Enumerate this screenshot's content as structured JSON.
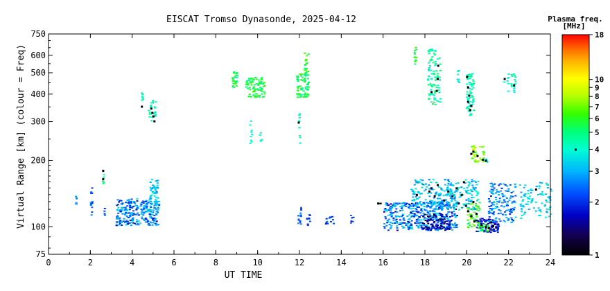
{
  "chart_data": {
    "type": "scatter",
    "title": "EISCAT Tromso Dynasonde, 2025-04-12",
    "xlabel": "UT TIME",
    "ylabel": "Virtual Range [km] (colour = Freq)",
    "xlim": [
      0,
      24
    ],
    "ylim": [
      75,
      750
    ],
    "yscale": "log",
    "x_ticks": [
      "0",
      "2",
      "4",
      "6",
      "8",
      "10",
      "12",
      "14",
      "16",
      "18",
      "20",
      "22",
      "24"
    ],
    "y_ticks": [
      "75",
      "100",
      "200",
      "300",
      "400",
      "500",
      "600",
      "750"
    ],
    "colorbar": {
      "title_line1": "Plasma freq.",
      "title_line2": "[MHz]",
      "range": [
        1,
        18
      ],
      "scale": "log",
      "ticks": [
        "1",
        "2",
        "3",
        "4",
        "5",
        "6",
        "7",
        "8",
        "9",
        "10",
        "18"
      ],
      "marker_value": 4
    },
    "clusters": [
      {
        "t0": 1.25,
        "t1": 1.3,
        "h0": 125,
        "h1": 140,
        "f0": 2.4,
        "f1": 3.0,
        "n": 6
      },
      {
        "t0": 1.95,
        "t1": 2.05,
        "h0": 110,
        "h1": 160,
        "f0": 1.9,
        "f1": 3.0,
        "n": 14
      },
      {
        "t0": 2.55,
        "t1": 2.65,
        "h0": 155,
        "h1": 182,
        "f0": 4.0,
        "f1": 5.5,
        "n": 5
      },
      {
        "t0": 2.6,
        "t1": 2.65,
        "h0": 110,
        "h1": 130,
        "f0": 2.0,
        "f1": 2.6,
        "n": 4
      },
      {
        "t0": 3.2,
        "t1": 5.25,
        "h0": 102,
        "h1": 135,
        "f0": 1.7,
        "f1": 3.6,
        "n": 260
      },
      {
        "t0": 4.8,
        "t1": 5.2,
        "h0": 130,
        "h1": 165,
        "f0": 2.6,
        "f1": 3.8,
        "n": 40
      },
      {
        "t0": 4.4,
        "t1": 4.5,
        "h0": 360,
        "h1": 410,
        "f0": 3.8,
        "f1": 4.8,
        "n": 8
      },
      {
        "t0": 4.75,
        "t1": 5.1,
        "h0": 300,
        "h1": 380,
        "f0": 3.6,
        "f1": 5.0,
        "n": 28
      },
      {
        "t0": 8.75,
        "t1": 9.0,
        "h0": 430,
        "h1": 510,
        "f0": 4.5,
        "f1": 6.5,
        "n": 30
      },
      {
        "t0": 9.4,
        "t1": 10.3,
        "h0": 390,
        "h1": 480,
        "f0": 4.5,
        "f1": 6.5,
        "n": 95
      },
      {
        "t0": 9.6,
        "t1": 9.7,
        "h0": 240,
        "h1": 310,
        "f0": 3.6,
        "f1": 4.4,
        "n": 9
      },
      {
        "t0": 10.05,
        "t1": 10.15,
        "h0": 240,
        "h1": 270,
        "f0": 3.6,
        "f1": 4.2,
        "n": 5
      },
      {
        "t0": 11.8,
        "t1": 12.4,
        "h0": 390,
        "h1": 500,
        "f0": 4.5,
        "f1": 6.5,
        "n": 75
      },
      {
        "t0": 12.2,
        "t1": 12.4,
        "h0": 480,
        "h1": 620,
        "f0": 5.0,
        "f1": 7.0,
        "n": 18
      },
      {
        "t0": 11.9,
        "t1": 12.0,
        "h0": 240,
        "h1": 330,
        "f0": 3.6,
        "f1": 4.6,
        "n": 12
      },
      {
        "t0": 11.9,
        "t1": 12.05,
        "h0": 102,
        "h1": 125,
        "f0": 1.8,
        "f1": 2.8,
        "n": 14
      },
      {
        "t0": 12.2,
        "t1": 12.5,
        "h0": 102,
        "h1": 118,
        "f0": 1.8,
        "f1": 2.6,
        "n": 10
      },
      {
        "t0": 13.2,
        "t1": 13.6,
        "h0": 102,
        "h1": 112,
        "f0": 1.8,
        "f1": 2.5,
        "n": 12
      },
      {
        "t0": 14.4,
        "t1": 14.6,
        "h0": 104,
        "h1": 115,
        "f0": 1.8,
        "f1": 2.4,
        "n": 6
      },
      {
        "t0": 15.75,
        "t1": 15.85,
        "h0": 125,
        "h1": 130,
        "f0": 1.0,
        "f1": 1.1,
        "n": 2
      },
      {
        "t0": 16.0,
        "t1": 19.5,
        "h0": 97,
        "h1": 130,
        "f0": 1.6,
        "f1": 3.6,
        "n": 420
      },
      {
        "t0": 17.3,
        "t1": 19.3,
        "h0": 120,
        "h1": 165,
        "f0": 2.4,
        "f1": 3.8,
        "n": 140
      },
      {
        "t0": 17.8,
        "t1": 19.2,
        "h0": 97,
        "h1": 115,
        "f0": 1.2,
        "f1": 1.9,
        "n": 80
      },
      {
        "t0": 19.0,
        "t1": 20.5,
        "h0": 120,
        "h1": 165,
        "f0": 2.5,
        "f1": 4.0,
        "n": 120
      },
      {
        "t0": 20.0,
        "t1": 20.6,
        "h0": 100,
        "h1": 130,
        "f0": 5.0,
        "f1": 8.0,
        "n": 45
      },
      {
        "t0": 20.4,
        "t1": 21.5,
        "h0": 95,
        "h1": 110,
        "f0": 1.3,
        "f1": 2.2,
        "n": 90
      },
      {
        "t0": 20.5,
        "t1": 21.0,
        "h0": 96,
        "h1": 104,
        "f0": 4.5,
        "f1": 6.5,
        "n": 25
      },
      {
        "t0": 21.0,
        "t1": 22.3,
        "h0": 105,
        "h1": 160,
        "f0": 1.8,
        "f1": 3.4,
        "n": 140
      },
      {
        "t0": 22.5,
        "t1": 24.0,
        "h0": 110,
        "h1": 160,
        "f0": 2.8,
        "f1": 3.9,
        "n": 90
      },
      {
        "t0": 17.45,
        "t1": 17.55,
        "h0": 530,
        "h1": 670,
        "f0": 5.0,
        "f1": 6.5,
        "n": 12
      },
      {
        "t0": 18.1,
        "t1": 18.7,
        "h0": 360,
        "h1": 650,
        "f0": 3.6,
        "f1": 5.5,
        "n": 90
      },
      {
        "t0": 19.5,
        "t1": 19.6,
        "h0": 440,
        "h1": 520,
        "f0": 3.5,
        "f1": 4.0,
        "n": 8
      },
      {
        "t0": 19.95,
        "t1": 20.3,
        "h0": 320,
        "h1": 500,
        "f0": 3.5,
        "f1": 5.0,
        "n": 70
      },
      {
        "t0": 20.2,
        "t1": 20.8,
        "h0": 198,
        "h1": 235,
        "f0": 6.0,
        "f1": 9.0,
        "n": 40
      },
      {
        "t0": 20.7,
        "t1": 20.95,
        "h0": 198,
        "h1": 206,
        "f0": 3.5,
        "f1": 4.2,
        "n": 10
      },
      {
        "t0": 21.7,
        "t1": 22.3,
        "h0": 410,
        "h1": 500,
        "f0": 3.6,
        "f1": 4.8,
        "n": 22
      }
    ],
    "markers": [
      {
        "t": 2.6,
        "h": 180
      },
      {
        "t": 2.6,
        "h": 165
      },
      {
        "t": 4.45,
        "h": 352
      },
      {
        "t": 4.9,
        "h": 345
      },
      {
        "t": 4.95,
        "h": 330
      },
      {
        "t": 5.0,
        "h": 318
      },
      {
        "t": 5.05,
        "h": 302
      },
      {
        "t": 11.95,
        "h": 298
      },
      {
        "t": 15.75,
        "h": 128
      },
      {
        "t": 18.3,
        "h": 410
      },
      {
        "t": 18.55,
        "h": 415
      },
      {
        "t": 18.6,
        "h": 470
      },
      {
        "t": 18.62,
        "h": 540
      },
      {
        "t": 20.0,
        "h": 480
      },
      {
        "t": 20.05,
        "h": 430
      },
      {
        "t": 20.1,
        "h": 395
      },
      {
        "t": 20.05,
        "h": 370
      },
      {
        "t": 20.15,
        "h": 340
      },
      {
        "t": 20.2,
        "h": 355
      },
      {
        "t": 20.2,
        "h": 215
      },
      {
        "t": 20.3,
        "h": 220
      },
      {
        "t": 20.5,
        "h": 210
      },
      {
        "t": 20.75,
        "h": 202
      },
      {
        "t": 20.9,
        "h": 200
      },
      {
        "t": 21.8,
        "h": 470
      },
      {
        "t": 22.25,
        "h": 440
      },
      {
        "t": 17.6,
        "h": 140
      },
      {
        "t": 18.2,
        "h": 145
      },
      {
        "t": 18.3,
        "h": 150
      },
      {
        "t": 18.45,
        "h": 138
      },
      {
        "t": 18.6,
        "h": 155
      },
      {
        "t": 18.9,
        "h": 132
      },
      {
        "t": 19.1,
        "h": 145
      },
      {
        "t": 19.3,
        "h": 138
      },
      {
        "t": 19.5,
        "h": 150
      },
      {
        "t": 19.6,
        "h": 128
      },
      {
        "t": 19.75,
        "h": 140
      },
      {
        "t": 19.95,
        "h": 125
      },
      {
        "t": 20.05,
        "h": 118
      },
      {
        "t": 20.2,
        "h": 112
      },
      {
        "t": 20.35,
        "h": 106
      },
      {
        "t": 20.45,
        "h": 115
      },
      {
        "t": 20.7,
        "h": 102
      },
      {
        "t": 20.9,
        "h": 100
      },
      {
        "t": 21.05,
        "h": 99
      },
      {
        "t": 21.15,
        "h": 105
      },
      {
        "t": 21.25,
        "h": 101
      },
      {
        "t": 23.3,
        "h": 148
      },
      {
        "t": 20.3,
        "h": 130
      },
      {
        "t": 19.85,
        "h": 160
      }
    ]
  }
}
